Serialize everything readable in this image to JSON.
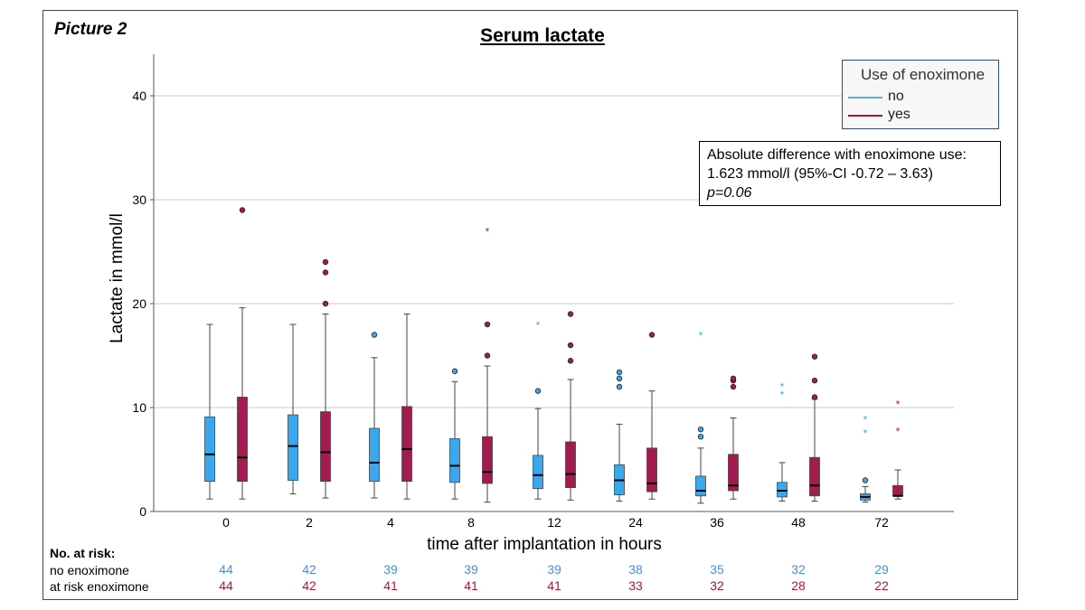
{
  "picture_label": "Picture 2",
  "chart_data": {
    "type": "boxplot",
    "title": "Serum lactate",
    "xlabel": "time after implantation in hours",
    "ylabel": "Lactate  in mmol/l",
    "ylim": [
      0,
      44
    ],
    "yticks": [
      0,
      10,
      20,
      30,
      40
    ],
    "grid": true,
    "categories": [
      "0",
      "2",
      "4",
      "8",
      "12",
      "24",
      "36",
      "48",
      "72"
    ],
    "legend": {
      "title": "Use of enoximone",
      "placement": "top-right",
      "entries": [
        {
          "label": "no",
          "color": "#3aa8ef"
        },
        {
          "label": "yes",
          "color": "#a21c4f"
        }
      ]
    },
    "series": [
      {
        "name": "no",
        "color": "#3aa8ef",
        "line_color": "#6b9fd4",
        "boxes": [
          {
            "min": 1.2,
            "q1": 2.9,
            "median": 5.5,
            "q3": 9.1,
            "max": 18.0,
            "outliers": [],
            "extremes": []
          },
          {
            "min": 1.7,
            "q1": 3.0,
            "median": 6.3,
            "q3": 9.3,
            "max": 18.0,
            "outliers": [],
            "extremes": []
          },
          {
            "min": 1.3,
            "q1": 2.9,
            "median": 4.7,
            "q3": 8.0,
            "max": 14.8,
            "outliers": [
              17.0
            ],
            "extremes": []
          },
          {
            "min": 1.2,
            "q1": 2.8,
            "median": 4.4,
            "q3": 7.0,
            "max": 12.5,
            "outliers": [
              13.5
            ],
            "extremes": []
          },
          {
            "min": 1.2,
            "q1": 2.2,
            "median": 3.5,
            "q3": 5.4,
            "max": 9.9,
            "outliers": [
              11.6
            ],
            "extremes": [
              18.0
            ]
          },
          {
            "min": 1.0,
            "q1": 1.6,
            "median": 3.0,
            "q3": 4.5,
            "max": 8.4,
            "outliers": [
              12.0,
              12.8,
              13.4
            ],
            "extremes": []
          },
          {
            "min": 0.8,
            "q1": 1.5,
            "median": 2.0,
            "q3": 3.4,
            "max": 6.1,
            "outliers": [
              7.2,
              7.9
            ],
            "extremes": [
              17.0
            ]
          },
          {
            "min": 1.0,
            "q1": 1.4,
            "median": 2.0,
            "q3": 2.8,
            "max": 4.7,
            "outliers": [],
            "extremes": [
              11.3,
              12.1
            ]
          },
          {
            "min": 0.9,
            "q1": 1.1,
            "median": 1.4,
            "q3": 1.7,
            "max": 2.4,
            "outliers": [
              3.0
            ],
            "extremes": [
              7.6,
              8.9
            ]
          }
        ]
      },
      {
        "name": "yes",
        "color": "#a21c4f",
        "line_color": "#9b1b46",
        "boxes": [
          {
            "min": 1.2,
            "q1": 2.9,
            "median": 5.2,
            "q3": 11.0,
            "max": 19.6,
            "outliers": [
              29.0
            ],
            "extremes": []
          },
          {
            "min": 1.3,
            "q1": 2.9,
            "median": 5.7,
            "q3": 9.6,
            "max": 19.0,
            "outliers": [
              20.0,
              23.0,
              24.0
            ],
            "extremes": []
          },
          {
            "min": 1.2,
            "q1": 2.9,
            "median": 6.0,
            "q3": 10.1,
            "max": 19.0,
            "outliers": [],
            "extremes": []
          },
          {
            "min": 0.9,
            "q1": 2.7,
            "median": 3.8,
            "q3": 7.2,
            "max": 14.0,
            "outliers": [
              15.0,
              18.0
            ],
            "extremes": [
              27.0
            ]
          },
          {
            "min": 1.1,
            "q1": 2.3,
            "median": 3.6,
            "q3": 6.7,
            "max": 12.7,
            "outliers": [
              14.5,
              16.0,
              19.0
            ],
            "extremes": []
          },
          {
            "min": 1.2,
            "q1": 1.9,
            "median": 2.7,
            "q3": 6.1,
            "max": 11.6,
            "outliers": [
              17.0
            ],
            "extremes": []
          },
          {
            "min": 1.2,
            "q1": 2.0,
            "median": 2.5,
            "q3": 5.5,
            "max": 9.0,
            "outliers": [
              12.0,
              12.6,
              12.8
            ],
            "extremes": []
          },
          {
            "min": 1.0,
            "q1": 1.5,
            "median": 2.5,
            "q3": 5.2,
            "max": 10.8,
            "outliers": [
              11.0,
              12.6,
              14.9
            ],
            "extremes": []
          },
          {
            "min": 1.2,
            "q1": 1.5,
            "median": 1.5,
            "q3": 2.5,
            "max": 4.0,
            "outliers": [],
            "extremes": [
              7.8,
              10.4
            ]
          }
        ]
      }
    ],
    "annotation": {
      "line1": "Absolute difference with enoximone use:",
      "line2": "1.623 mmol/l (95%-CI -0.72 – 3.63)",
      "line3": "p=0.06"
    }
  },
  "risk_table": {
    "heading": "No. at risk:",
    "rows": [
      {
        "label": "no enoximone",
        "color": "#4a8fd6",
        "values": [
          "44",
          "42",
          "39",
          "39",
          "39",
          "38",
          "35",
          "32",
          "29"
        ]
      },
      {
        "label": "at risk enoximone",
        "color": "#a01a46",
        "values": [
          "44",
          "42",
          "41",
          "41",
          "41",
          "33",
          "32",
          "28",
          "22"
        ]
      }
    ]
  }
}
